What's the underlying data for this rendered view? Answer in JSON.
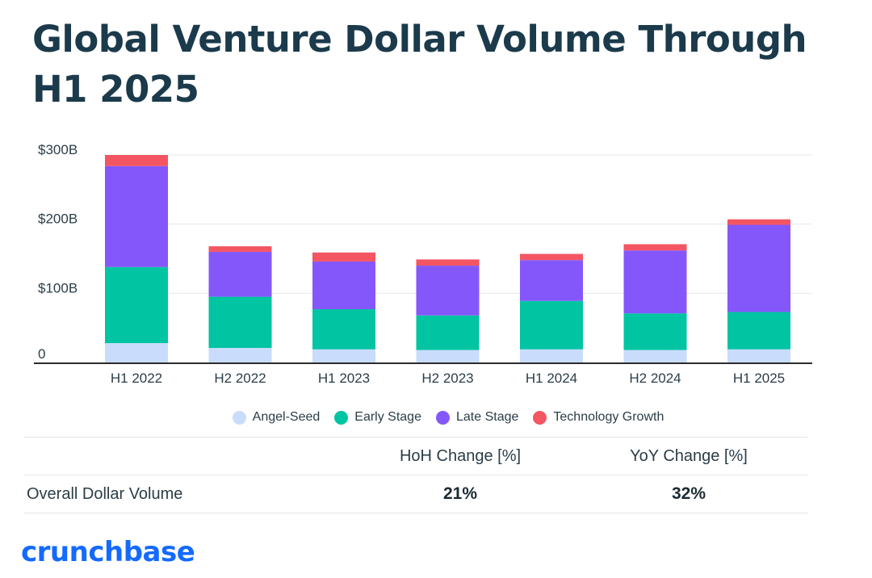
{
  "title": "Global Venture Dollar Volume Through H1 2025",
  "colors": {
    "angel_seed": "#c9dcfb",
    "early_stage": "#00c4a2",
    "late_stage": "#8457fb",
    "technology_growth": "#f45563",
    "axis": "#2b2b2b",
    "grid": "#e6e8ea"
  },
  "chart_data": {
    "type": "bar",
    "stacked": true,
    "categories": [
      "H1 2022",
      "H2 2022",
      "H1 2023",
      "H2 2023",
      "H1 2024",
      "H2 2024",
      "H1 2025"
    ],
    "series": [
      {
        "name": "Angel-Seed",
        "values": [
          28,
          21,
          19,
          18,
          19,
          18,
          19
        ]
      },
      {
        "name": "Early Stage",
        "values": [
          110,
          74,
          58,
          50,
          70,
          53,
          54
        ]
      },
      {
        "name": "Late Stage",
        "values": [
          146,
          65,
          69,
          72,
          59,
          91,
          126
        ]
      },
      {
        "name": "Technology Growth",
        "values": [
          16,
          8,
          13,
          9,
          9,
          9,
          8
        ]
      }
    ],
    "yticks": [
      "0",
      "$100B",
      "$200B",
      "$300B"
    ],
    "ylim": [
      0,
      300
    ],
    "grid": true,
    "legend": "bottom"
  },
  "legend": {
    "items": [
      {
        "label": "Angel-Seed",
        "color": "#c9dcfb"
      },
      {
        "label": "Early Stage",
        "color": "#00c4a2"
      },
      {
        "label": "Late Stage",
        "color": "#8457fb"
      },
      {
        "label": "Technology Growth",
        "color": "#f45563"
      }
    ]
  },
  "table": {
    "headers": [
      "",
      "HoH Change [%]",
      "YoY Change [%]"
    ],
    "rows": [
      {
        "label": "Overall Dollar Volume",
        "hoh": "21%",
        "yoy": "32%"
      }
    ]
  },
  "brand": {
    "logo_text": "crunchbase"
  }
}
